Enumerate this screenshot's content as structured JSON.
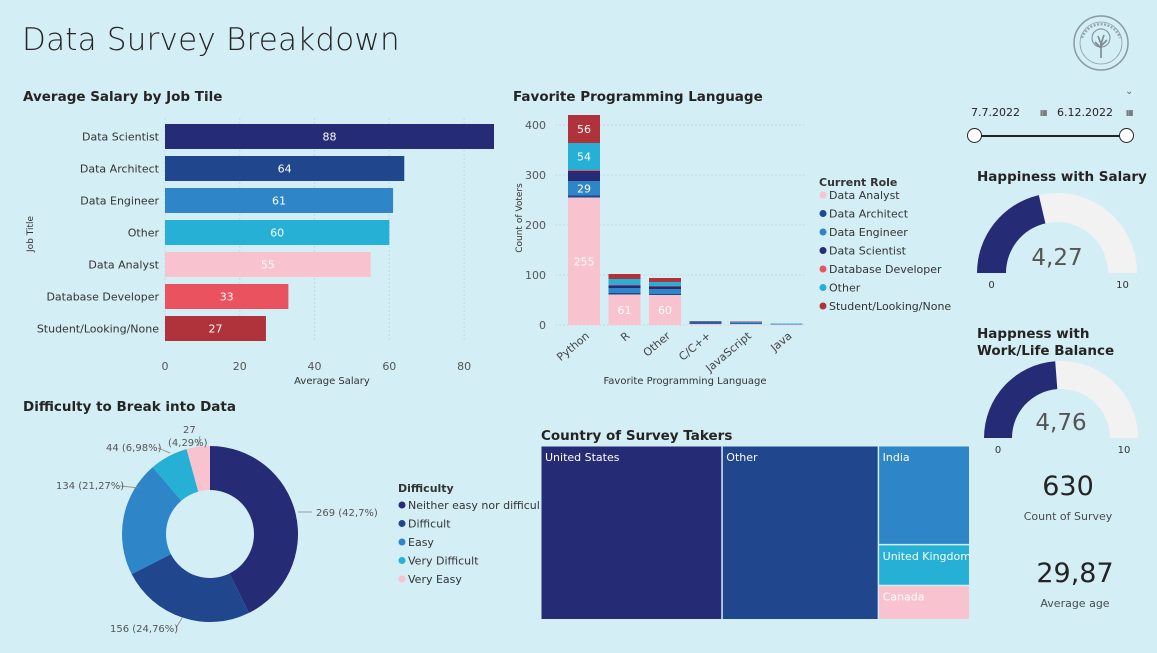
{
  "page_title": "Data Survey Breakdown",
  "date_range": {
    "start": "7.7.2022",
    "end": "6.12.2022"
  },
  "colors": {
    "navy": "#252b74",
    "blue": "#20468d",
    "mid_blue": "#2e86c8",
    "cyan": "#27b0d5",
    "pink": "#f8c2cf",
    "red": "#e9525e",
    "dark_red": "#b0323a",
    "gauge_bg": "#f2f2f2"
  },
  "salary_chart": {
    "title": "Average Salary by Job Tile",
    "chart_data": {
      "type": "bar",
      "orientation": "horizontal",
      "categories": [
        "Data Scientist",
        "Data Architect",
        "Data Engineer",
        "Other",
        "Data Analyst",
        "Database Developer",
        "Student/Looking/None"
      ],
      "values": [
        88,
        64,
        61,
        60,
        55,
        33,
        27
      ],
      "colors": [
        "#252b74",
        "#20468d",
        "#2e86c8",
        "#27b0d5",
        "#f8c2cf",
        "#e9525e",
        "#b0323a"
      ],
      "xlabel": "Average Salary",
      "ylabel": "Job Title",
      "xlim": [
        0,
        88
      ],
      "xticks": [
        0,
        20,
        40,
        60,
        80
      ]
    }
  },
  "language_chart": {
    "title": "Favorite Programming Language",
    "chart_data": {
      "type": "bar",
      "stacked": true,
      "categories": [
        "Python",
        "R",
        "Other",
        "C/C++",
        "JavaScript",
        "Java"
      ],
      "series": [
        {
          "name": "Data Analyst",
          "color": "#f8c2cf",
          "values": [
            255,
            61,
            60,
            2,
            2,
            1
          ]
        },
        {
          "name": "Data Architect",
          "color": "#20468d",
          "values": [
            4,
            3,
            2,
            1,
            1,
            0
          ]
        },
        {
          "name": "Data Engineer",
          "color": "#2e86c8",
          "values": [
            29,
            10,
            10,
            2,
            2,
            1
          ]
        },
        {
          "name": "Data Scientist",
          "color": "#252b74",
          "values": [
            20,
            5,
            5,
            1,
            0,
            0
          ]
        },
        {
          "name": "Database Developer",
          "color": "#e9525e",
          "values": [
            2,
            1,
            1,
            0,
            0,
            0
          ]
        },
        {
          "name": "Other",
          "color": "#27b0d5",
          "values": [
            54,
            12,
            8,
            1,
            1,
            1
          ]
        },
        {
          "name": "Student/Looking/None",
          "color": "#b0323a",
          "values": [
            56,
            10,
            8,
            1,
            1,
            0
          ]
        }
      ],
      "data_labels": [
        {
          "category": "Python",
          "series": "Data Analyst",
          "text": "255"
        },
        {
          "category": "Python",
          "series": "Data Engineer",
          "text": "29"
        },
        {
          "category": "Python",
          "series": "Other",
          "text": "54"
        },
        {
          "category": "Python",
          "series": "Student/Looking/None",
          "text": "56"
        },
        {
          "category": "R",
          "series": "Data Analyst",
          "text": "61"
        },
        {
          "category": "Other",
          "series": "Data Analyst",
          "text": "60"
        }
      ],
      "xlabel": "Favorite Programming Language",
      "ylabel": "Count of Voters",
      "ylim": [
        0,
        420
      ],
      "yticks": [
        0,
        100,
        200,
        300,
        400
      ],
      "legend_title": "Current Role",
      "legend_position": "right"
    }
  },
  "difficulty_chart": {
    "title": "Difficulty to Break into Data",
    "chart_data": {
      "type": "pie",
      "donut": true,
      "categories": [
        "Neither easy nor difficult",
        "Difficult",
        "Easy",
        "Very Difficult",
        "Very Easy"
      ],
      "values": [
        269,
        156,
        134,
        44,
        27
      ],
      "colors": [
        "#252b74",
        "#20468d",
        "#2e86c8",
        "#27b0d5",
        "#f8c2cf"
      ],
      "labels": [
        "269 (42,7%)",
        "156 (24,76%)",
        "134 (21,27%)",
        "44 (6,98%)",
        "27"
      ],
      "extra_label": "(4,29%)",
      "legend_title": "Difficulty",
      "legend_position": "right"
    }
  },
  "country_chart": {
    "title": "Country of Survey Takers",
    "chart_data": {
      "type": "treemap",
      "categories": [
        "United States",
        "Other",
        "India",
        "United Kingdom",
        "Canada"
      ],
      "values": [
        262,
        226,
        75,
        31,
        26
      ],
      "colors": [
        "#252b74",
        "#20468d",
        "#2e86c8",
        "#27b0d5",
        "#f8c2cf"
      ]
    }
  },
  "gauges": [
    {
      "title": "Happiness with Salary",
      "value": 4.27,
      "value_text": "4,27",
      "min": 0,
      "max": 10,
      "min_text": "0",
      "max_text": "10"
    },
    {
      "title": "Happness with Work/Life Balance",
      "value": 4.76,
      "value_text": "4,76",
      "min": 0,
      "max": 10,
      "min_text": "0",
      "max_text": "10"
    }
  ],
  "kpis": [
    {
      "value": "630",
      "label": "Count of Survey"
    },
    {
      "value": "29,87",
      "label": "Average age"
    }
  ]
}
